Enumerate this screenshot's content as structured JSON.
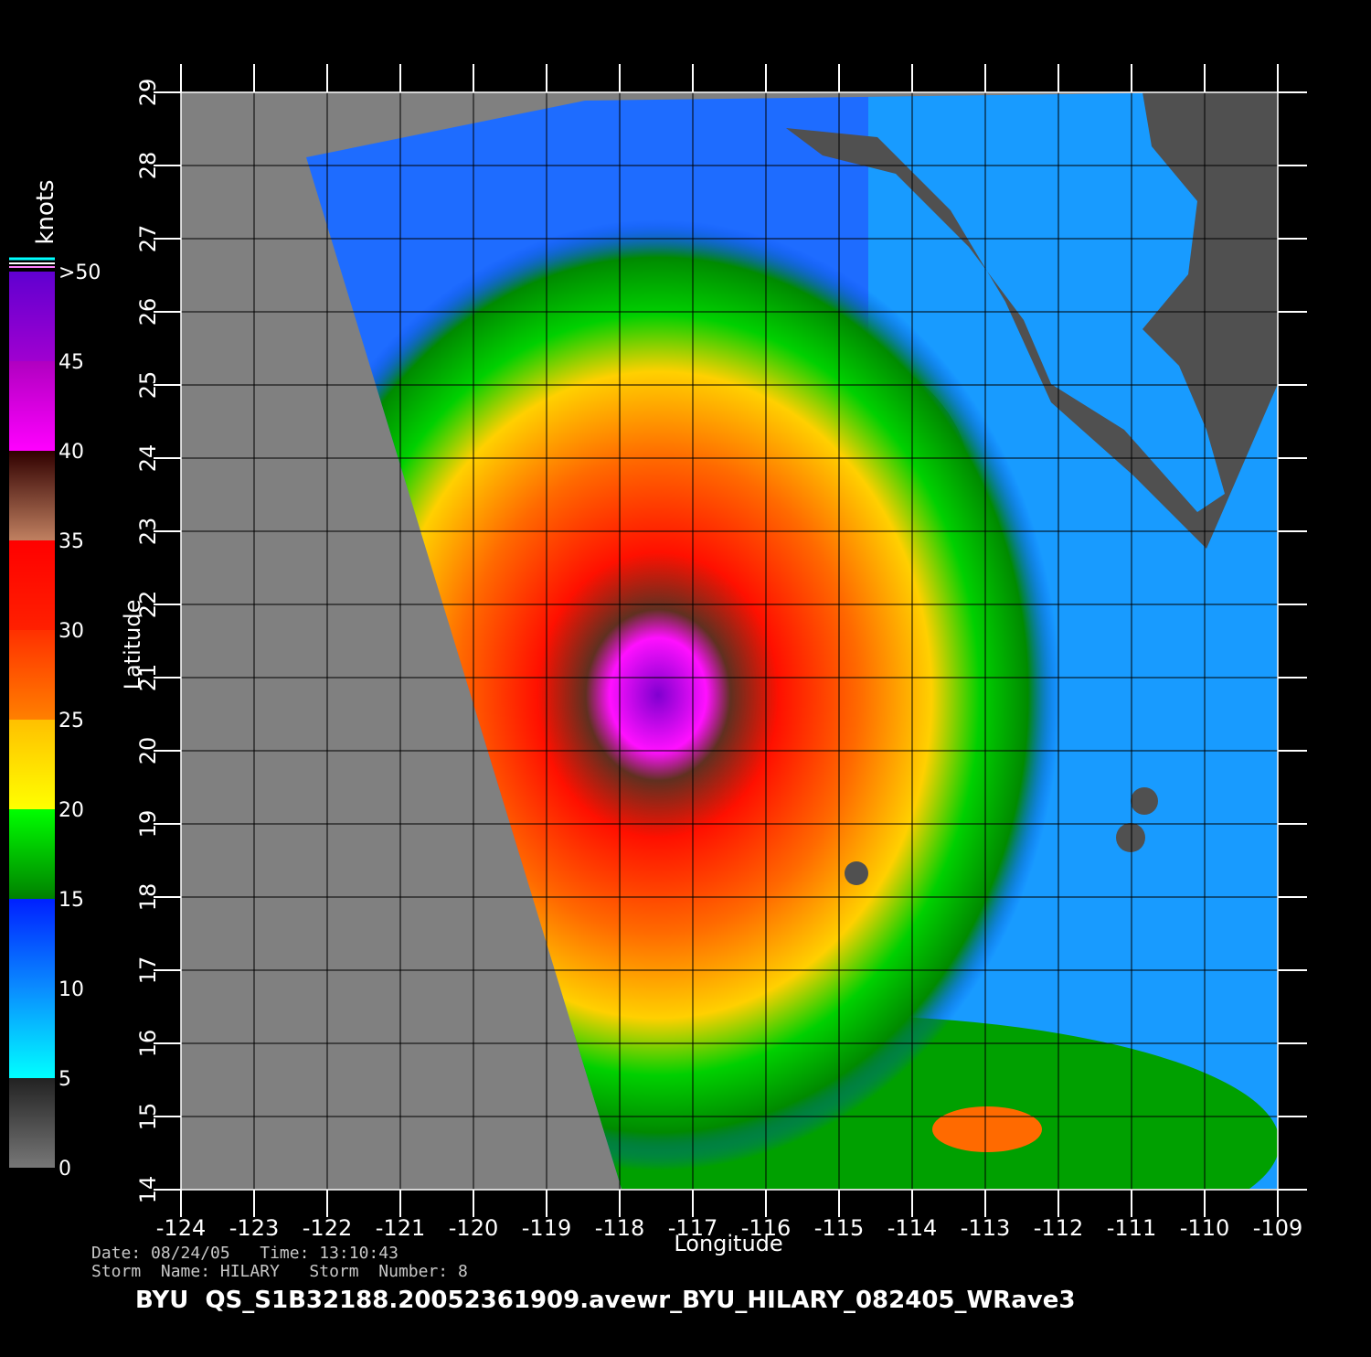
{
  "map": {
    "xlabel": "Longitude",
    "ylabel": "Latitude",
    "xlim": [
      -124,
      -109
    ],
    "ylim": [
      14,
      29
    ],
    "xticks": [
      -124,
      -123,
      -122,
      -121,
      -120,
      -119,
      -118,
      -117,
      -116,
      -115,
      -114,
      -113,
      -112,
      -111,
      -110,
      -109
    ],
    "yticks": [
      14,
      15,
      16,
      17,
      18,
      19,
      20,
      21,
      22,
      23,
      24,
      25,
      26,
      27,
      28,
      29
    ],
    "grid": true,
    "colorbar": {
      "label": "knots",
      "lim": [
        0,
        50
      ],
      "ticks": [
        0,
        5,
        10,
        15,
        20,
        25,
        30,
        35,
        40,
        45,
        {
          "value": 50,
          "label": ">50"
        }
      ]
    }
  },
  "info": {
    "date_line": "Date: 08/24/05   Time: 13:10:43",
    "storm_line": "Storm  Name: HILARY   Storm  Number: 8"
  },
  "footer": "BYU  QS_S1B32188.20052361909.avewr_BYU_HILARY_082405_WRave3"
}
